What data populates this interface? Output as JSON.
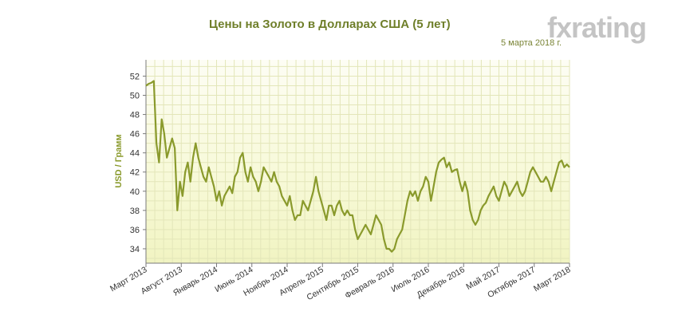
{
  "header": {
    "title": "Цены на Золото в Долларах США (5 лет)",
    "date": "5 марта 2018 г.",
    "logo_text": "fxrating"
  },
  "colors": {
    "line": "#8a9a2c",
    "title": "#6f7f2a",
    "grid": "#e3e6b9",
    "plot_bg_top": "#fdfdf4",
    "plot_bg_mid": "#f6f8cd",
    "axis": "#7a7a7a",
    "logo": "#c4c4c4",
    "logo_accent": "#e08a2b"
  },
  "chart_data": {
    "type": "line",
    "title": "Цены на Золото в Долларах США (5 лет)",
    "xlabel": "",
    "ylabel": "USD / Грамм",
    "ylim": [
      32.5,
      53.7
    ],
    "y_ticks": [
      34,
      36,
      38,
      40,
      42,
      44,
      46,
      48,
      50,
      52
    ],
    "x_tick_labels": [
      "Март 2013",
      "Август 2013",
      "Январь 2014",
      "Июнь 2014",
      "Ноябрь 2014",
      "Апрель 2015",
      "Сентябрь 2015",
      "Февраль 2016",
      "Июль 2016",
      "Декабрь 2016",
      "Май 2017",
      "Октябрь 2017",
      "Март 2018"
    ],
    "grid": true,
    "legend": "none",
    "series": [
      {
        "name": "",
        "values": [
          51.0,
          51.2,
          51.3,
          51.5,
          45.0,
          43.0,
          47.5,
          46.0,
          43.5,
          44.5,
          45.5,
          44.5,
          38.0,
          41.0,
          39.5,
          42.0,
          43.0,
          41.0,
          43.5,
          45.0,
          43.5,
          42.5,
          41.5,
          41.0,
          42.5,
          41.5,
          40.5,
          39.0,
          40.0,
          38.5,
          39.5,
          40.0,
          40.5,
          39.8,
          41.5,
          42.0,
          43.5,
          44.0,
          42.0,
          41.0,
          42.5,
          41.5,
          41.0,
          40.0,
          41.0,
          42.5,
          42.0,
          41.5,
          41.0,
          42.0,
          41.0,
          40.5,
          39.5,
          39.0,
          38.5,
          39.5,
          38.0,
          37.0,
          37.5,
          37.5,
          39.0,
          38.5,
          38.0,
          39.0,
          40.0,
          41.5,
          40.0,
          39.0,
          38.0,
          37.0,
          38.5,
          38.5,
          37.5,
          38.5,
          39.0,
          38.0,
          37.5,
          38.0,
          37.5,
          37.5,
          36.0,
          35.0,
          35.5,
          36.0,
          36.5,
          36.0,
          35.5,
          36.5,
          37.5,
          37.0,
          36.5,
          35.0,
          34.0,
          34.0,
          33.7,
          34.0,
          35.0,
          35.5,
          36.0,
          37.5,
          39.0,
          40.0,
          39.5,
          40.0,
          39.0,
          40.0,
          40.5,
          41.5,
          41.0,
          39.0,
          40.5,
          42.0,
          43.0,
          43.3,
          43.5,
          42.5,
          43.0,
          42.0,
          42.2,
          42.3,
          41.0,
          40.0,
          41.0,
          40.0,
          38.0,
          37.0,
          36.5,
          37.0,
          38.0,
          38.5,
          38.8,
          39.5,
          40.0,
          40.5,
          39.5,
          39.0,
          40.0,
          41.0,
          40.5,
          39.5,
          40.0,
          40.5,
          41.0,
          40.0,
          39.5,
          40.0,
          41.0,
          42.0,
          42.5,
          42.0,
          41.5,
          41.0,
          41.0,
          41.5,
          41.0,
          40.0,
          41.0,
          42.0,
          43.0,
          43.2,
          42.5,
          42.8,
          42.5
        ]
      }
    ]
  }
}
